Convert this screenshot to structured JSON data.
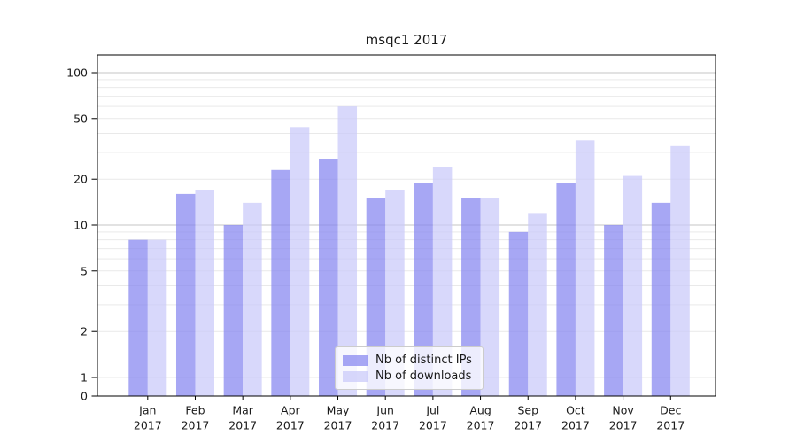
{
  "chart_data": {
    "type": "bar",
    "title": "msqc1 2017",
    "yscale": "symlog",
    "categories": [
      "Jan",
      "Feb",
      "Mar",
      "Apr",
      "May",
      "Jun",
      "Jul",
      "Aug",
      "Sep",
      "Oct",
      "Nov",
      "Dec"
    ],
    "xtick_year": "2017",
    "series": [
      {
        "name": "Nb of distinct IPs",
        "color": "#8585f0",
        "opacity": 0.72,
        "values": [
          8,
          16,
          10,
          23,
          27,
          15,
          19,
          15,
          9,
          19,
          10,
          14
        ]
      },
      {
        "name": "Nb of downloads",
        "color": "#c9c9fa",
        "opacity": 0.72,
        "values": [
          8,
          17,
          14,
          44,
          60,
          17,
          24,
          15,
          12,
          36,
          21,
          33
        ]
      }
    ],
    "yticks": [
      0,
      1,
      2,
      5,
      10,
      20,
      50,
      100
    ],
    "ylim": [
      0,
      131
    ],
    "grid": "horizontal, log major and minor",
    "legend_position": "lower center"
  },
  "colors": {
    "background": "#ffffff",
    "text": "#1a1a1a",
    "axis": "#000000",
    "grid_major": "#c6c6c6",
    "grid_minor": "#e9e9e9",
    "legend_border": "#cccccc",
    "legend_background": "rgba(255,255,255,0.8)"
  }
}
